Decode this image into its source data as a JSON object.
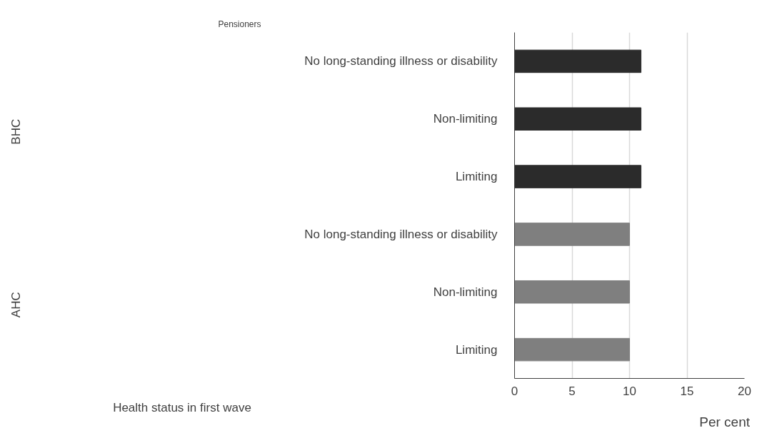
{
  "chart_data": {
    "type": "bar",
    "orientation": "horizontal",
    "title": "Pensioners",
    "xlabel": "Per cent",
    "ylabel": "Health status in first wave",
    "categories": [
      "No long-standing illness or disability",
      "Non-limiting",
      "Limiting",
      "No long-standing illness or disability",
      "Non-limiting",
      "Limiting"
    ],
    "values": [
      11,
      11,
      11,
      10,
      10,
      10
    ],
    "colors": [
      "#2b2b2b",
      "#2b2b2b",
      "#2b2b2b",
      "#7f7f7f",
      "#7f7f7f",
      "#7f7f7f"
    ],
    "annotations": [
      "BHC",
      "AHC"
    ],
    "xlim": [
      0,
      20
    ],
    "xticks": [
      0,
      5,
      10,
      15,
      20
    ],
    "grid": "x"
  }
}
